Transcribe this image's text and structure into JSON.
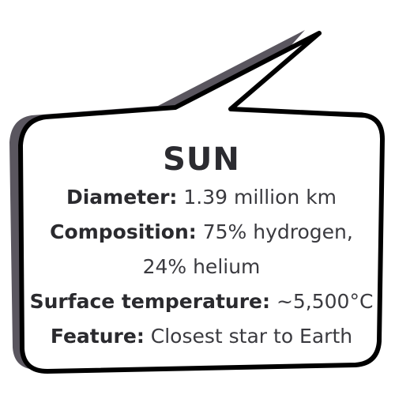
{
  "bubble": {
    "shadow_color": "#5a565f",
    "fill_color": "#ffffff",
    "outline_color": "#000000"
  },
  "title": "SUN",
  "facts": [
    {
      "label": "Diameter:",
      "value": "1.39 million km"
    },
    {
      "label": "Composition:",
      "value": "75% hydrogen,"
    },
    {
      "label": "",
      "value": "24% helium"
    },
    {
      "label": "Surface temperature:",
      "value": "~5,500°C"
    },
    {
      "label": "Feature:",
      "value": "Closest star to Earth"
    }
  ]
}
